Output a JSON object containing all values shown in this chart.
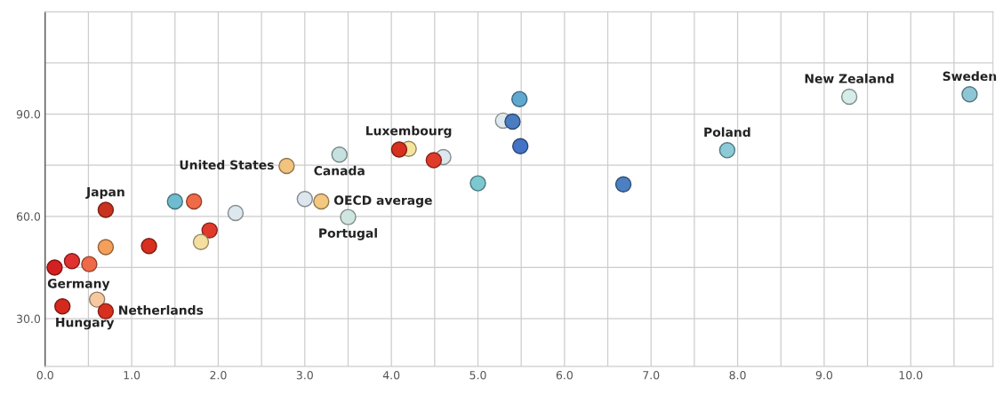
{
  "chart_data": {
    "type": "scatter",
    "x": [
      10.68,
      9.29,
      7.88,
      5.48,
      5.29,
      5.4,
      5.49,
      5.0,
      6.68,
      4.6,
      4.49,
      4.2,
      4.09,
      3.4,
      2.79,
      3.0,
      3.19,
      3.5,
      2.2,
      1.9,
      1.8,
      1.72,
      1.5,
      1.2,
      0.7,
      0.7,
      0.51,
      0.31,
      0.11,
      0.6,
      0.2,
      0.7
    ],
    "values": [
      95.8,
      95.1,
      79.4,
      94.4,
      88.1,
      87.8,
      80.6,
      69.7,
      69.4,
      77.4,
      76.5,
      79.8,
      79.6,
      78.1,
      74.8,
      65.1,
      64.4,
      59.8,
      61.0,
      55.9,
      52.5,
      64.4,
      64.4,
      51.3,
      61.9,
      51.0,
      46.0,
      46.9,
      45.0,
      35.6,
      33.6,
      32.2
    ],
    "colors": [
      "#8fc6d6",
      "#d6ece8",
      "#8ccad8",
      "#5fa8cf",
      "#dfe9ee",
      "#4a7cc0",
      "#4273c4",
      "#7cc8d0",
      "#4c80c2",
      "#dde8ee",
      "#e03a2a",
      "#f5e3a0",
      "#d7301f",
      "#c6e2e0",
      "#f2c27f",
      "#dde6ee",
      "#f3c880",
      "#cfe6e0",
      "#dde8ee",
      "#e03a2a",
      "#f3e0a0",
      "#f06a48",
      "#6fbcd0",
      "#d7301f",
      "#c8321e",
      "#f5a05a",
      "#ef6a48",
      "#e03030",
      "#d42020",
      "#f5c8a0",
      "#d42a1e",
      "#d7301f"
    ],
    "marker": "circle",
    "xlim": [
      0,
      10.95
    ],
    "ylim": [
      16,
      120
    ],
    "xticks": [
      {
        "value": 0,
        "label": "0.0"
      },
      {
        "value": 0.5,
        "label": null
      },
      {
        "value": 1,
        "label": "1.0"
      },
      {
        "value": 1.5,
        "label": null
      },
      {
        "value": 2,
        "label": "2.0"
      },
      {
        "value": 2.5,
        "label": null
      },
      {
        "value": 3,
        "label": "3.0"
      },
      {
        "value": 3.5,
        "label": null
      },
      {
        "value": 4,
        "label": "4.0"
      },
      {
        "value": 4.5,
        "label": null
      },
      {
        "value": 5,
        "label": "5.0"
      },
      {
        "value": 5.5,
        "label": null
      },
      {
        "value": 6,
        "label": "6.0"
      },
      {
        "value": 6.5,
        "label": null
      },
      {
        "value": 7,
        "label": "7.0"
      },
      {
        "value": 7.5,
        "label": null
      },
      {
        "value": 8,
        "label": "8.0"
      },
      {
        "value": 8.5,
        "label": null
      },
      {
        "value": 9,
        "label": "9.0"
      },
      {
        "value": 9.5,
        "label": null
      },
      {
        "value": 10,
        "label": "10.0"
      },
      {
        "value": 10.5,
        "label": null
      }
    ],
    "yticks": [
      {
        "value": 30,
        "label": "30.0"
      },
      {
        "value": 45,
        "label": null
      },
      {
        "value": 60,
        "label": "60.0"
      },
      {
        "value": 75,
        "label": null
      },
      {
        "value": 90,
        "label": "90.0"
      },
      {
        "value": 105,
        "label": null
      }
    ],
    "grid": true,
    "annotations": [
      {
        "text": "Sweden",
        "x": 10.68,
        "y": 95.8
      },
      {
        "text": "New Zealand",
        "x": 9.29,
        "y": 95.1
      },
      {
        "text": "Poland",
        "x": 7.88,
        "y": 79.4
      },
      {
        "text": "Luxembourg",
        "x": 4.2,
        "y": 79.8
      },
      {
        "text": "Canada",
        "x": 3.4,
        "y": 78.1
      },
      {
        "text": "United States",
        "x": 2.79,
        "y": 74.8
      },
      {
        "text": "OECD average",
        "x": 3.19,
        "y": 64.4
      },
      {
        "text": "Portugal",
        "x": 3.5,
        "y": 59.8
      },
      {
        "text": "Japan",
        "x": 0.7,
        "y": 61.9
      },
      {
        "text": "Germany",
        "x": 0.11,
        "y": 45.0
      },
      {
        "text": "Hungary",
        "x": 0.2,
        "y": 33.6
      },
      {
        "text": "Netherlands",
        "x": 0.7,
        "y": 32.2
      }
    ]
  }
}
